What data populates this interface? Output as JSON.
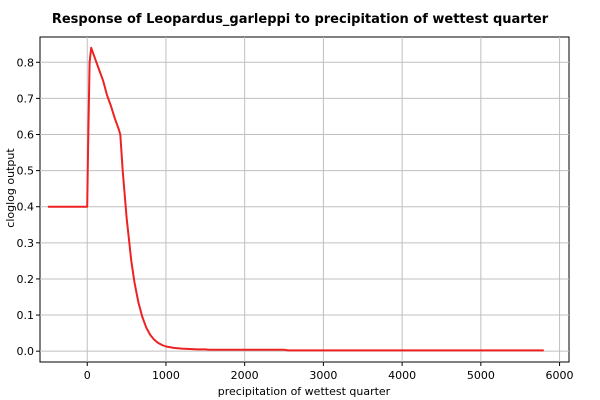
{
  "chart_data": {
    "type": "line",
    "title": "Response of Leopardus_garleppi to precipitation of wettest quarter",
    "xlabel": "precipitation of wettest quarter",
    "ylabel": "cloglog output",
    "xlim": [
      -600,
      6120
    ],
    "ylim": [
      -0.03,
      0.87
    ],
    "xticks": [
      0,
      1000,
      2000,
      3000,
      4000,
      5000,
      6000
    ],
    "yticks": [
      0.0,
      0.1,
      0.2,
      0.3,
      0.4,
      0.5,
      0.6,
      0.7,
      0.8
    ],
    "grid": true,
    "series_color": "#ee2222",
    "x": [
      -500,
      0,
      10,
      30,
      50,
      100,
      150,
      200,
      250,
      300,
      350,
      400,
      420,
      450,
      500,
      550,
      560,
      600,
      650,
      700,
      750,
      800,
      850,
      900,
      950,
      1000,
      1100,
      1200,
      1300,
      1400,
      1500,
      1550,
      2000,
      2500,
      2550,
      3000,
      4000,
      5000,
      5800
    ],
    "y": [
      0.4,
      0.4,
      0.55,
      0.8,
      0.84,
      0.81,
      0.78,
      0.75,
      0.71,
      0.68,
      0.645,
      0.615,
      0.6,
      0.5,
      0.37,
      0.27,
      0.25,
      0.19,
      0.135,
      0.095,
      0.065,
      0.045,
      0.032,
      0.023,
      0.017,
      0.013,
      0.009,
      0.007,
      0.006,
      0.005,
      0.005,
      0.004,
      0.004,
      0.004,
      0.002,
      0.002,
      0.002,
      0.002,
      0.002
    ]
  }
}
